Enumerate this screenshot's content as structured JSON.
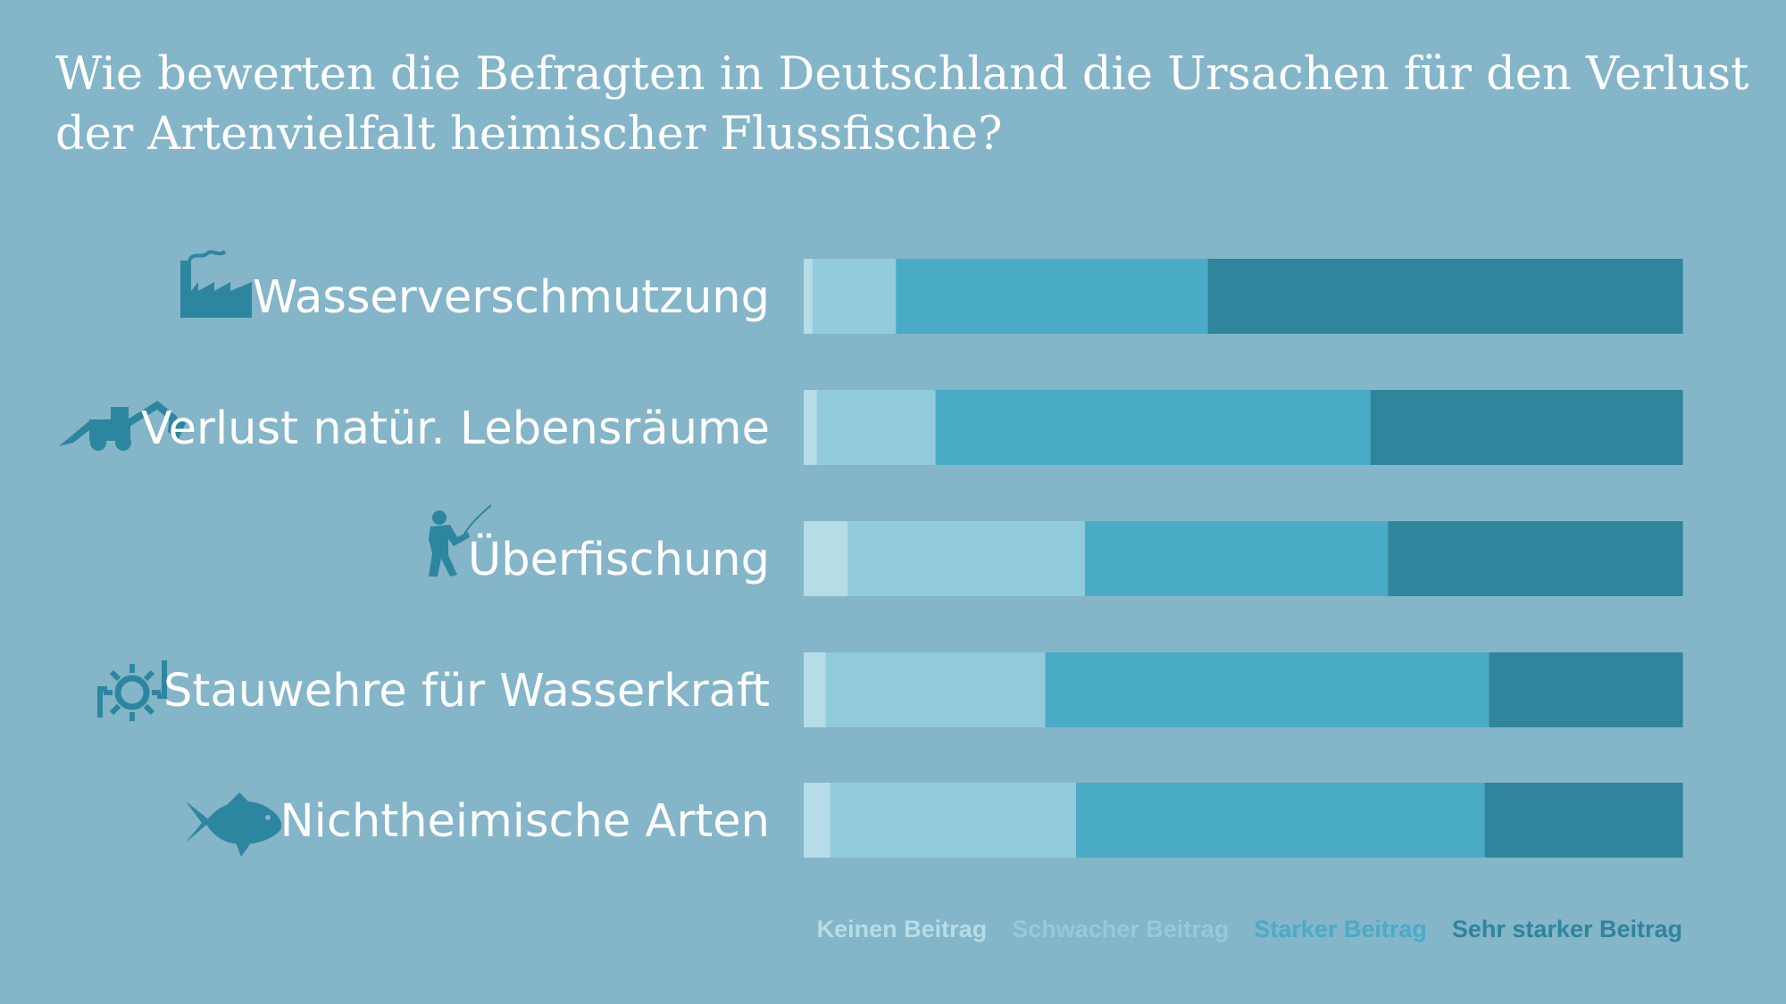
{
  "colors": {
    "background": "#84b5c8",
    "keinen": "#b6dce7",
    "schwach": "#92cbdc",
    "stark": "#4aabc6",
    "sehr_stark": "#30849c",
    "icon": "#2d86a0",
    "text": "#ffffff"
  },
  "chart_data": {
    "type": "bar",
    "orientation": "horizontal",
    "stacked": true,
    "normalized": true,
    "title": "Wie bewerten die Befragten in Deutschland die Ursachen für den Verlust der Artenvielfalt heimischer Flussfische?",
    "title_lines": [
      "Wie bewerten die Befragten in Deutschland die Ursachen für den Verlust",
      "der Artenvielfalt heimischer Flussfische?"
    ],
    "categories": [
      "Wasserverschmutzung",
      "Verlust natür. Lebensräume",
      "Überfischung",
      "Stauwehre für Wasserkraft",
      "Nichtheimische Arten"
    ],
    "category_icons": [
      "factory-icon",
      "excavator-icon",
      "angler-icon",
      "weir-wheel-icon",
      "fish-icon"
    ],
    "series": [
      {
        "name": "Keinen Beitrag",
        "color_key": "keinen",
        "values": [
          1,
          1.5,
          5,
          2.5,
          3
        ]
      },
      {
        "name": "Schwacher Beitrag",
        "color_key": "schwach",
        "values": [
          9.5,
          13.5,
          27,
          25,
          28
        ]
      },
      {
        "name": "Starker Beitrag",
        "color_key": "stark",
        "values": [
          35.5,
          49.5,
          34.5,
          50.5,
          46.5
        ]
      },
      {
        "name": "Sehr starker Beitrag",
        "color_key": "sehr_stark",
        "values": [
          54,
          35.5,
          33.5,
          22,
          22.5
        ]
      }
    ],
    "xlim": [
      0,
      100
    ],
    "unit": "%",
    "legend_position": "bottom-right",
    "grid": false
  }
}
